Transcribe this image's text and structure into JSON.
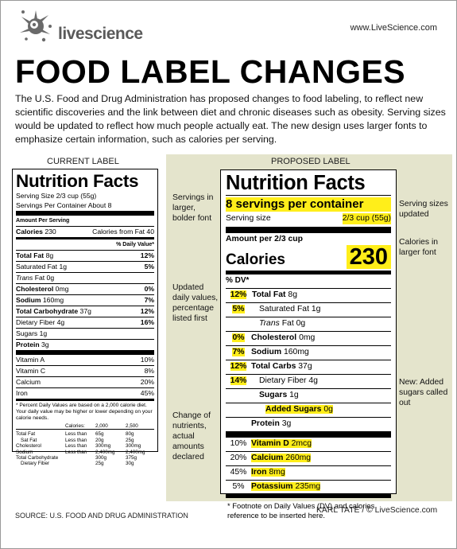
{
  "header": {
    "logo_text": "livescience",
    "site_url": "www.LiveScience.com",
    "title": "FOOD LABEL CHANGES",
    "intro": "The U.S. Food and Drug Administration has proposed changes to food labeling, to reflect new scientific discoveries and the link between diet and chronic diseases such as obesity. Serving sizes would be updated to reflect how much people actually eat. The new design uses larger fonts to emphasize certain information, such as calories per serving."
  },
  "current": {
    "heading": "CURRENT LABEL",
    "title": "Nutrition Facts",
    "serving_size": "Serving Size 2/3 cup (55g)",
    "servings_per": "Servings Per Container About 8",
    "amount_per": "Amount Per Serving",
    "calories_label": "Calories",
    "calories_value": "230",
    "calories_fat": "Calories from Fat 40",
    "dv_header": "% Daily Value*",
    "rows": [
      {
        "label": "Total Fat",
        "amount": "8g",
        "dv": "12%"
      },
      {
        "label": "Saturated Fat",
        "amount": "1g",
        "dv": "5%"
      },
      {
        "label": "Trans",
        "amount": "Fat 0g",
        "dv": ""
      },
      {
        "label": "Cholesterol",
        "amount": "0mg",
        "dv": "0%"
      },
      {
        "label": "Sodium",
        "amount": "160mg",
        "dv": "7%"
      },
      {
        "label": "Total Carbohydrate",
        "amount": "37g",
        "dv": "12%"
      },
      {
        "label": "Dietary Fiber",
        "amount": "4g",
        "dv": "16%"
      },
      {
        "label": "Sugars",
        "amount": "1g",
        "dv": ""
      },
      {
        "label": "Protein",
        "amount": "3g",
        "dv": ""
      }
    ],
    "vitamins": [
      {
        "label": "Vitamin A",
        "dv": "10%"
      },
      {
        "label": "Vitamin C",
        "dv": "8%"
      },
      {
        "label": "Calcium",
        "dv": "20%"
      },
      {
        "label": "Iron",
        "dv": "45%"
      }
    ],
    "footnote": "* Percent Daily Values are based on a 2,000 calorie diet. Your daily value may be higher or lower depending on your calorie needs.",
    "ftable": {
      "calories_label": "Calories:",
      "c1": "2,000",
      "c2": "2,500",
      "rows": [
        [
          "Total Fat",
          "Less than",
          "65g",
          "80g"
        ],
        [
          "Sat Fat",
          "Less than",
          "20g",
          "25g"
        ],
        [
          "Cholesterol",
          "Less than",
          "300mg",
          "300mg"
        ],
        [
          "Sodium",
          "Less than",
          "2,400mg",
          "2,400mg"
        ],
        [
          "Total Carbohydrate",
          "",
          "300g",
          "375g"
        ],
        [
          "Dietary Fiber",
          "",
          "25g",
          "30g"
        ]
      ]
    }
  },
  "proposed": {
    "heading": "PROPOSED LABEL",
    "title": "Nutrition Facts",
    "servings": "8 servings per container",
    "serving_size_label": "Serving size",
    "serving_size_value": "2/3 cup (55g)",
    "amount_per": "Amount per 2/3 cup",
    "calories_label": "Calories",
    "calories_value": "230",
    "dv_header": "% DV*",
    "rows": [
      {
        "dv": "12%",
        "label": "Total Fat",
        "amount": "8g"
      },
      {
        "dv": "5%",
        "label": "Saturated Fat",
        "amount": "1g"
      },
      {
        "dv": "",
        "label": "Trans",
        "amount": "Fat 0g"
      },
      {
        "dv": "0%",
        "label": "Cholesterol",
        "amount": "0mg"
      },
      {
        "dv": "7%",
        "label": "Sodium",
        "amount": "160mg"
      },
      {
        "dv": "12%",
        "label": "Total Carbs",
        "amount": "37g"
      },
      {
        "dv": "14%",
        "label": "Dietary Fiber",
        "amount": "4g"
      },
      {
        "dv": "",
        "label": "Sugars",
        "amount": "1g"
      },
      {
        "dv": "",
        "label": "Added Sugars",
        "amount": "0g"
      },
      {
        "dv": "",
        "label": "Protein",
        "amount": "3g"
      }
    ],
    "vitamins": [
      {
        "dv": "10%",
        "label": "Vitamin D",
        "amount": "2mcg"
      },
      {
        "dv": "20%",
        "label": "Calcium",
        "amount": "260mg"
      },
      {
        "dv": "45%",
        "label": "Iron",
        "amount": "8mg"
      },
      {
        "dv": "5%",
        "label": "Potassium",
        "amount": "235mg"
      }
    ],
    "footnote": "* Footnote on Daily Values (DV) and calories reference to be inserted here."
  },
  "notes": {
    "servings": "Servings in larger, bolder font",
    "dv": "Updated daily values, percentage listed first",
    "nutrients": "Change of nutrients, actual amounts declared",
    "serving_sizes": "Serving sizes updated",
    "calories": "Calories in larger font",
    "added_sugars": "New: Added sugars called out"
  },
  "footer": {
    "source": "SOURCE: U.S. FOOD AND DRUG ADMINISTRATION",
    "credit": "KARL TATE / © LiveScience.com"
  },
  "colors": {
    "highlight": "#ffee1a",
    "panel": "#e4e4cc"
  }
}
